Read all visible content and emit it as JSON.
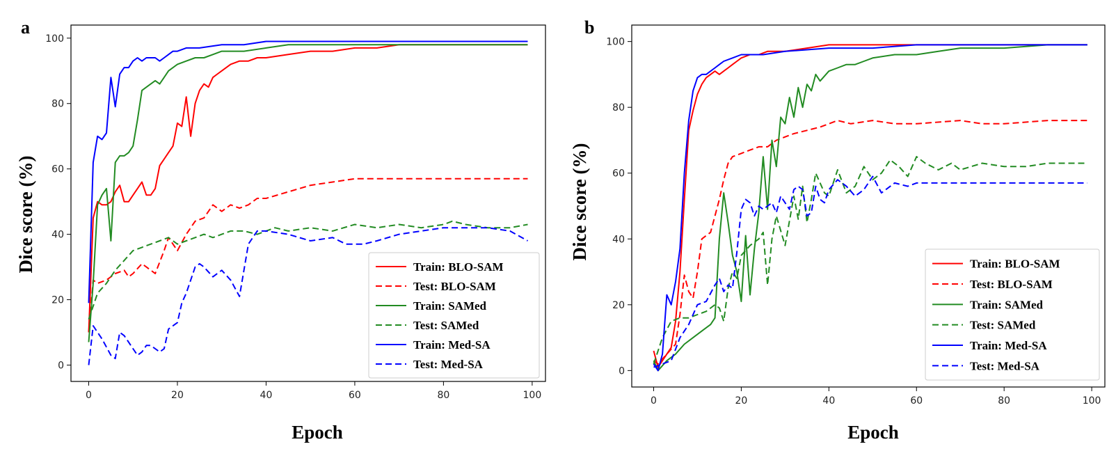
{
  "chart_data": [
    {
      "panel_label": "a",
      "type": "line",
      "title": "",
      "xlabel": "Epoch",
      "ylabel": "Dice score (%)",
      "xlim": [
        -4,
        103
      ],
      "ylim": [
        -5,
        104
      ],
      "xticks": [
        0,
        20,
        40,
        60,
        80,
        100
      ],
      "yticks": [
        0,
        20,
        40,
        60,
        80,
        100
      ],
      "grid": false,
      "legend_position": "bottom-right",
      "series": [
        {
          "name": "Train: BLO-SAM",
          "color": "#ff0000",
          "style": "solid",
          "x": [
            0,
            1,
            2,
            3,
            4,
            5,
            6,
            7,
            8,
            9,
            10,
            11,
            12,
            13,
            14,
            15,
            16,
            17,
            18,
            19,
            20,
            21,
            22,
            23,
            24,
            25,
            26,
            27,
            28,
            29,
            30,
            32,
            34,
            36,
            38,
            40,
            45,
            50,
            55,
            60,
            65,
            70,
            75,
            80,
            85,
            90,
            95,
            99
          ],
          "y": [
            10,
            45,
            50,
            49,
            49,
            50,
            53,
            55,
            50,
            50,
            52,
            54,
            56,
            52,
            52,
            54,
            61,
            63,
            65,
            67,
            74,
            73,
            82,
            70,
            80,
            84,
            86,
            85,
            88,
            89,
            90,
            92,
            93,
            93,
            94,
            94,
            95,
            96,
            96,
            97,
            97,
            98,
            98,
            98,
            98,
            98,
            98,
            98
          ]
        },
        {
          "name": "Test: BLO-SAM",
          "color": "#ff0000",
          "style": "dashed",
          "x": [
            0,
            1,
            2,
            4,
            6,
            8,
            9,
            10,
            12,
            13,
            15,
            17,
            18,
            20,
            22,
            24,
            26,
            28,
            30,
            32,
            34,
            36,
            38,
            40,
            45,
            50,
            55,
            60,
            62,
            65,
            70,
            75,
            80,
            85,
            90,
            95,
            99
          ],
          "y": [
            10,
            26,
            25,
            26,
            28,
            29,
            27,
            28,
            31,
            30,
            28,
            35,
            39,
            35,
            40,
            44,
            45,
            49,
            47,
            49,
            48,
            49,
            51,
            51,
            53,
            55,
            56,
            57,
            57,
            57,
            57,
            57,
            57,
            57,
            57,
            57,
            57
          ]
        },
        {
          "name": "Train: SAMed",
          "color": "#228b22",
          "style": "solid",
          "x": [
            0,
            1,
            2,
            3,
            4,
            5,
            6,
            7,
            8,
            9,
            10,
            11,
            12,
            13,
            14,
            15,
            16,
            17,
            18,
            20,
            22,
            24,
            26,
            28,
            30,
            35,
            40,
            45,
            50,
            55,
            60,
            65,
            70,
            80,
            90,
            99
          ],
          "y": [
            7,
            25,
            49,
            52,
            54,
            38,
            62,
            64,
            64,
            65,
            67,
            75,
            84,
            85,
            86,
            87,
            86,
            88,
            90,
            92,
            93,
            94,
            94,
            95,
            96,
            96,
            97,
            98,
            98,
            98,
            98,
            98,
            98,
            98,
            98,
            98
          ]
        },
        {
          "name": "Test: SAMed",
          "color": "#228b22",
          "style": "dashed",
          "x": [
            0,
            2,
            4,
            6,
            8,
            10,
            12,
            14,
            16,
            18,
            20,
            22,
            24,
            26,
            28,
            30,
            32,
            35,
            38,
            40,
            42,
            45,
            50,
            55,
            60,
            65,
            70,
            75,
            80,
            82,
            85,
            90,
            95,
            99
          ],
          "y": [
            14,
            22,
            25,
            29,
            32,
            35,
            36,
            37,
            38,
            39,
            37,
            38,
            39,
            40,
            39,
            40,
            41,
            41,
            40,
            41,
            42,
            41,
            42,
            41,
            43,
            42,
            43,
            42,
            43,
            44,
            43,
            42,
            42,
            43
          ]
        },
        {
          "name": "Train: Med-SA",
          "color": "#0000ff",
          "style": "solid",
          "x": [
            0,
            1,
            2,
            3,
            4,
            5,
            6,
            7,
            8,
            9,
            10,
            11,
            12,
            13,
            14,
            15,
            16,
            17,
            18,
            19,
            20,
            22,
            25,
            30,
            35,
            40,
            50,
            60,
            70,
            80,
            90,
            99
          ],
          "y": [
            19,
            62,
            70,
            69,
            71,
            88,
            79,
            89,
            91,
            91,
            93,
            94,
            93,
            94,
            94,
            94,
            93,
            94,
            95,
            96,
            96,
            97,
            97,
            98,
            98,
            99,
            99,
            99,
            99,
            99,
            99,
            99
          ]
        },
        {
          "name": "Test: Med-SA",
          "color": "#0000ff",
          "style": "dashed",
          "x": [
            0,
            1,
            3,
            5,
            6,
            7,
            8,
            9,
            10,
            11,
            12,
            13,
            14,
            15,
            16,
            17,
            18,
            19,
            20,
            21,
            22,
            24,
            25,
            26,
            28,
            30,
            32,
            34,
            36,
            38,
            40,
            45,
            50,
            55,
            58,
            62,
            65,
            70,
            75,
            80,
            85,
            90,
            95,
            99
          ],
          "y": [
            0,
            12,
            8,
            3,
            2,
            10,
            9,
            7,
            5,
            3,
            4,
            6,
            6,
            5,
            4,
            5,
            11,
            12,
            13,
            19,
            22,
            30,
            31,
            30,
            27,
            29,
            26,
            21,
            37,
            41,
            41,
            40,
            38,
            39,
            37,
            37,
            38,
            40,
            41,
            42,
            42,
            42,
            41,
            38
          ]
        }
      ]
    },
    {
      "panel_label": "b",
      "type": "line",
      "title": "",
      "xlabel": "Epoch",
      "ylabel": "Dice score (%)",
      "xlim": [
        -5,
        103
      ],
      "ylim": [
        -5,
        105
      ],
      "xticks": [
        0,
        20,
        40,
        60,
        80,
        100
      ],
      "yticks": [
        0,
        20,
        40,
        60,
        80,
        100
      ],
      "grid": false,
      "legend_position": "bottom-right",
      "series": [
        {
          "name": "Train: BLO-SAM",
          "color": "#ff0000",
          "style": "solid",
          "x": [
            0,
            1,
            2,
            3,
            4,
            5,
            6,
            7,
            8,
            9,
            10,
            11,
            12,
            13,
            14,
            15,
            16,
            17,
            18,
            19,
            20,
            22,
            24,
            26,
            28,
            30,
            35,
            40,
            45,
            50,
            55,
            60,
            70,
            80,
            90,
            99
          ],
          "y": [
            6,
            1,
            3,
            5,
            7,
            15,
            30,
            52,
            73,
            79,
            84,
            87,
            89,
            90,
            91,
            90,
            91,
            92,
            93,
            94,
            95,
            96,
            96,
            97,
            97,
            97,
            98,
            99,
            99,
            99,
            99,
            99,
            99,
            99,
            99,
            99
          ]
        },
        {
          "name": "Test: BLO-SAM",
          "color": "#ff0000",
          "style": "dashed",
          "x": [
            0,
            1,
            3,
            5,
            6,
            7,
            8,
            9,
            10,
            11,
            12,
            13,
            15,
            16,
            17,
            18,
            20,
            22,
            24,
            26,
            28,
            30,
            32,
            35,
            38,
            40,
            42,
            45,
            50,
            55,
            60,
            70,
            75,
            80,
            90,
            99
          ],
          "y": [
            3,
            2,
            5,
            8,
            17,
            29,
            24,
            22,
            30,
            40,
            41,
            42,
            52,
            58,
            63,
            65,
            66,
            67,
            68,
            68,
            70,
            71,
            72,
            73,
            74,
            75,
            76,
            75,
            76,
            75,
            75,
            76,
            75,
            75,
            76,
            76
          ]
        },
        {
          "name": "Train: SAMed",
          "color": "#228b22",
          "style": "solid",
          "x": [
            0,
            1,
            3,
            5,
            7,
            9,
            11,
            13,
            14,
            15,
            16,
            17,
            18,
            19,
            20,
            21,
            22,
            23,
            24,
            25,
            26,
            27,
            28,
            29,
            30,
            31,
            32,
            33,
            34,
            35,
            36,
            37,
            38,
            40,
            42,
            44,
            46,
            48,
            50,
            55,
            60,
            65,
            70,
            80,
            90,
            99
          ],
          "y": [
            3,
            0,
            3,
            5,
            8,
            10,
            12,
            14,
            16,
            40,
            54,
            45,
            35,
            30,
            21,
            41,
            23,
            37,
            48,
            65,
            49,
            70,
            62,
            77,
            75,
            83,
            77,
            86,
            80,
            87,
            85,
            90,
            88,
            91,
            92,
            93,
            93,
            94,
            95,
            96,
            96,
            97,
            98,
            98,
            99,
            99
          ]
        },
        {
          "name": "Test: SAMed",
          "color": "#228b22",
          "style": "dashed",
          "x": [
            0,
            2,
            4,
            6,
            8,
            10,
            12,
            14,
            15,
            16,
            17,
            18,
            19,
            20,
            22,
            24,
            25,
            26,
            27,
            28,
            30,
            32,
            33,
            34,
            35,
            36,
            37,
            38,
            39,
            40,
            42,
            44,
            46,
            48,
            50,
            52,
            54,
            56,
            58,
            60,
            62,
            65,
            68,
            70,
            75,
            80,
            85,
            90,
            99
          ],
          "y": [
            2,
            10,
            15,
            16,
            16,
            17,
            18,
            20,
            19,
            15,
            25,
            30,
            28,
            35,
            38,
            40,
            42,
            26,
            40,
            47,
            38,
            53,
            46,
            56,
            45,
            52,
            60,
            57,
            54,
            53,
            61,
            54,
            56,
            62,
            58,
            60,
            64,
            62,
            59,
            65,
            63,
            61,
            63,
            61,
            63,
            62,
            62,
            63,
            63
          ]
        },
        {
          "name": "Train: Med-SA",
          "color": "#0000ff",
          "style": "solid",
          "x": [
            0,
            1,
            2,
            3,
            4,
            5,
            6,
            7,
            8,
            9,
            10,
            11,
            12,
            13,
            14,
            15,
            16,
            18,
            20,
            25,
            30,
            40,
            50,
            60,
            70,
            80,
            90,
            99
          ],
          "y": [
            2,
            0,
            5,
            23,
            20,
            27,
            37,
            60,
            76,
            85,
            89,
            90,
            90,
            91,
            92,
            93,
            94,
            95,
            96,
            96,
            97,
            98,
            98,
            99,
            99,
            99,
            99,
            99
          ]
        },
        {
          "name": "Test: Med-SA",
          "color": "#0000ff",
          "style": "dashed",
          "x": [
            0,
            2,
            4,
            6,
            8,
            10,
            12,
            14,
            15,
            16,
            17,
            18,
            19,
            20,
            21,
            22,
            23,
            24,
            25,
            26,
            27,
            28,
            29,
            30,
            31,
            32,
            33,
            34,
            35,
            36,
            37,
            38,
            39,
            40,
            42,
            44,
            46,
            48,
            50,
            52,
            55,
            58,
            60,
            65,
            70,
            80,
            90,
            99
          ],
          "y": [
            1,
            2,
            3,
            10,
            14,
            20,
            21,
            26,
            28,
            24,
            26,
            25,
            36,
            49,
            52,
            51,
            47,
            50,
            49,
            50,
            51,
            48,
            53,
            51,
            49,
            55,
            56,
            55,
            47,
            48,
            56,
            52,
            51,
            55,
            58,
            56,
            53,
            55,
            59,
            54,
            57,
            56,
            57,
            57,
            57,
            57,
            57,
            57
          ]
        }
      ]
    }
  ]
}
